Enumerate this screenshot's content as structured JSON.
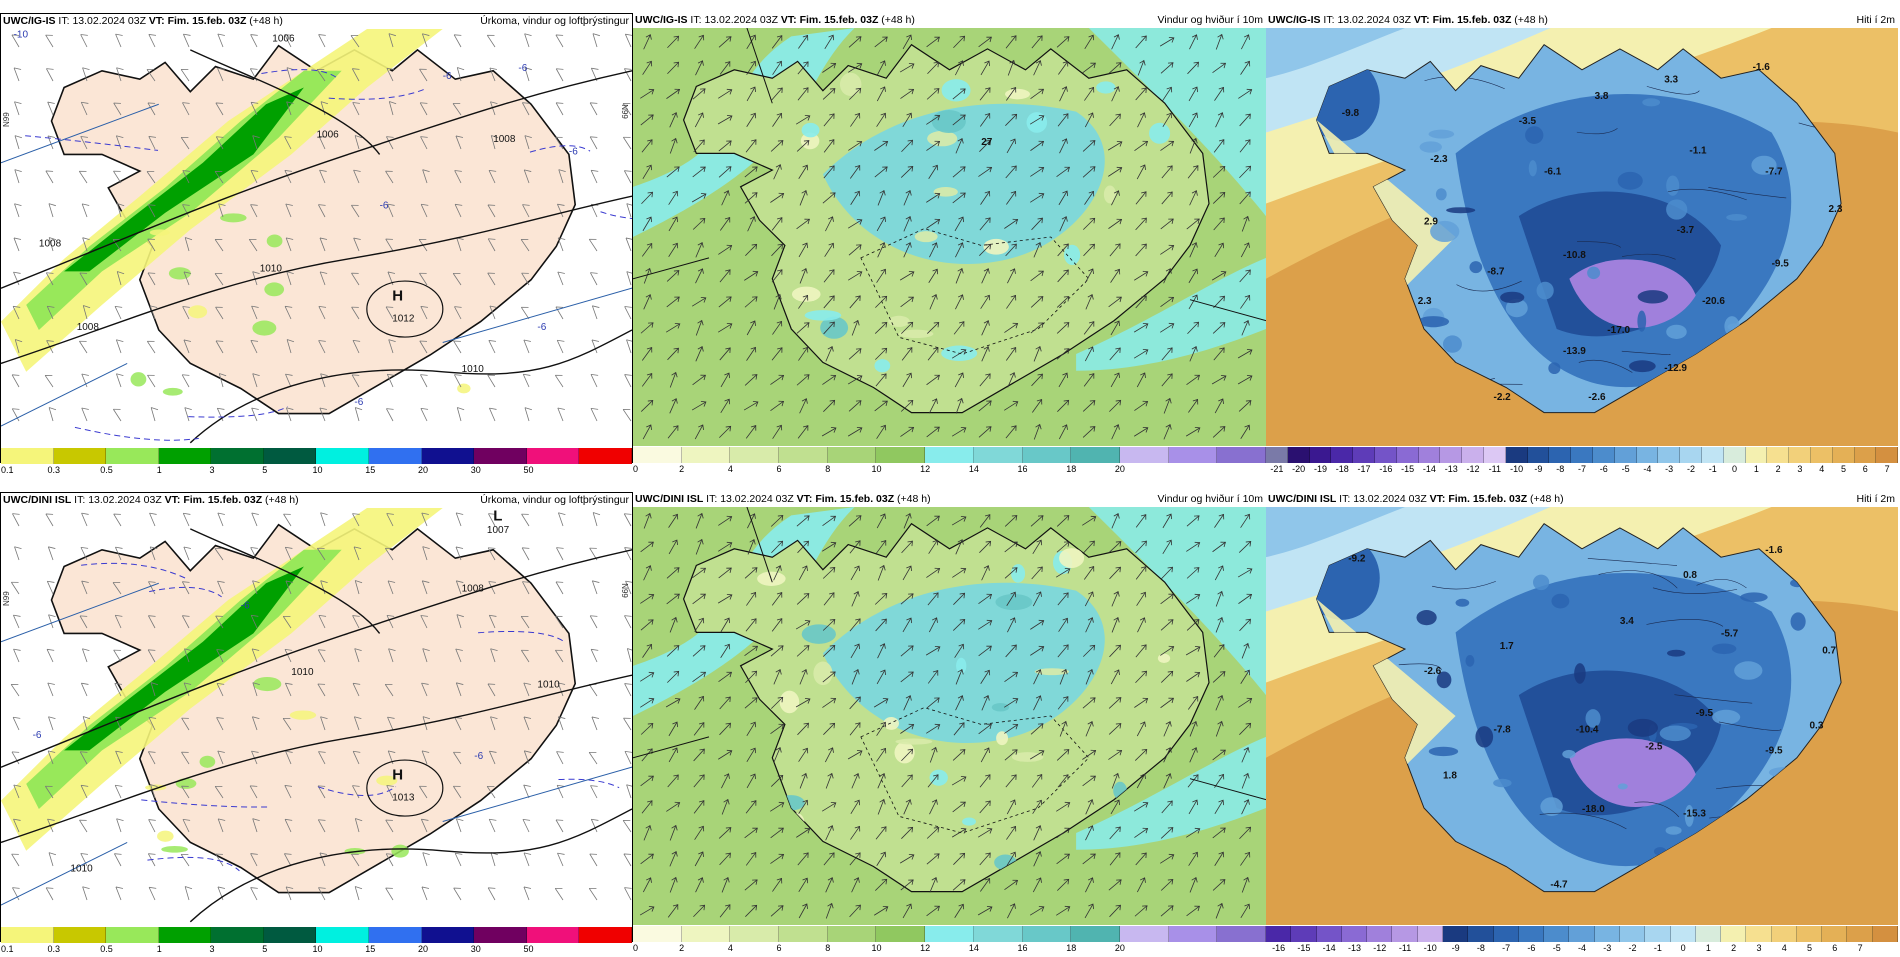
{
  "rows": [
    {
      "panels": [
        {
          "model": "UWC/IG-IS",
          "it_label": "IT:",
          "it_value": "13.02.2024 03Z",
          "vt_label": "VT:",
          "vt_value": "Fim. 15.feb. 03Z",
          "lead": "(+48 h)",
          "field_title": "Úrkoma, vindur og loftþrýstingur",
          "kind": "precip",
          "lat_label": "N99",
          "lat_label_right": "N99",
          "labels": [
            {
              "t": "-10"
            },
            {
              "t": "1006"
            },
            {
              "t": "1006"
            },
            {
              "t": "1008"
            },
            {
              "t": "1008"
            },
            {
              "t": "1010"
            },
            {
              "t": "1008"
            },
            {
              "t": "1010"
            },
            {
              "t": "H"
            },
            {
              "t": "1012"
            },
            {
              "t": "-6"
            },
            {
              "t": "-6"
            },
            {
              "t": "-6"
            },
            {
              "t": "-6"
            },
            {
              "t": "-6"
            },
            {
              "t": "-6"
            }
          ],
          "colorbar": {
            "colors": [
              "#f5f57a",
              "#c8c800",
              "#98e85a",
              "#00a000",
              "#007030",
              "#005a40",
              "#00f0e0",
              "#3070f0",
              "#101090",
              "#700060",
              "#f0107a",
              "#f00000"
            ],
            "ticks": [
              "0.1",
              "0.3",
              "0.5",
              "1",
              "3",
              "5",
              "10",
              "15",
              "20",
              "30",
              "50"
            ]
          }
        },
        {
          "model": "UWC/IG-IS",
          "it_label": "IT:",
          "it_value": "13.02.2024 03Z",
          "vt_label": "VT:",
          "vt_value": "Fim. 15.feb. 03Z",
          "lead": "(+48 h)",
          "field_title": "Vindur og hviður í 10m",
          "kind": "wind",
          "labels": [
            {
              "t": "27"
            }
          ],
          "colorbar": {
            "colors": [
              "#fafae0",
              "#eef5c0",
              "#d8ebaa",
              "#c0e090",
              "#a8d478",
              "#90c860",
              "#88ecec",
              "#80d8d8",
              "#68c8c8",
              "#50b4b0",
              "#c8b8f0",
              "#a890e8",
              "#8870d0"
            ],
            "ticks": [
              "0",
              "2",
              "4",
              "6",
              "8",
              "10",
              "12",
              "14",
              "16",
              "18",
              "20"
            ]
          }
        },
        {
          "model": "UWC/IG-IS",
          "it_label": "IT:",
          "it_value": "13.02.2024 03Z",
          "vt_label": "VT:",
          "vt_value": "Fim. 15.feb. 03Z",
          "lead": "(+48 h)",
          "field_title": "Hiti í 2m",
          "kind": "temp",
          "labels": [
            {
              "t": "-9.8"
            },
            {
              "t": "-3.5"
            },
            {
              "t": "3.3"
            },
            {
              "t": "-1.6"
            },
            {
              "t": "3.8"
            },
            {
              "t": "-2.3"
            },
            {
              "t": "-6.1"
            },
            {
              "t": "-1.1"
            },
            {
              "t": "-7.7"
            },
            {
              "t": "2.9"
            },
            {
              "t": "-3.7"
            },
            {
              "t": "2.3"
            },
            {
              "t": "-10.8"
            },
            {
              "t": "-9.5"
            },
            {
              "t": "-8.7"
            },
            {
              "t": "2.3"
            },
            {
              "t": "-20.6"
            },
            {
              "t": "-17.0"
            },
            {
              "t": "-13.9"
            },
            {
              "t": "-12.9"
            },
            {
              "t": "-2.2"
            },
            {
              "t": "-2.6"
            }
          ],
          "colorbar": {
            "colors": [
              "#7a7aa8",
              "#2a1070",
              "#3a1890",
              "#4a28a8",
              "#5e3cb8",
              "#7454c8",
              "#8a6ad4",
              "#a080dc",
              "#b698e4",
              "#cab0ec",
              "#dcc8f4",
              "#1a3a80",
              "#22509a",
              "#2c64b0",
              "#3a78c0",
              "#4c8ccc",
              "#62a0d8",
              "#78b4e2",
              "#90c6ea",
              "#a8d6f0",
              "#c0e4f4",
              "#d8ecdc",
              "#f4f0b0",
              "#f6e090",
              "#f2d07a",
              "#ecc066",
              "#e4b056",
              "#dca04a",
              "#d49040"
            ],
            "ticks": [
              "-21",
              "-20",
              "-19",
              "-18",
              "-17",
              "-16",
              "-15",
              "-14",
              "-13",
              "-12",
              "-11",
              "-10",
              "-9",
              "-8",
              "-7",
              "-6",
              "-5",
              "-4",
              "-3",
              "-2",
              "-1",
              "0",
              "1",
              "2",
              "3",
              "4",
              "5",
              "6",
              "7"
            ]
          }
        }
      ]
    },
    {
      "panels": [
        {
          "model": "UWC/DINI ISL",
          "it_label": "IT:",
          "it_value": "13.02.2024 03Z",
          "vt_label": "VT:",
          "vt_value": "Fim. 15.feb. 03Z",
          "lead": "(+48 h)",
          "field_title": "Úrkoma, vindur og loftþrýstingur",
          "kind": "precip",
          "lat_label": "N99",
          "lat_label_right": "N99",
          "labels": [
            {
              "t": "L"
            },
            {
              "t": "1007"
            },
            {
              "t": "1008"
            },
            {
              "t": "1010"
            },
            {
              "t": "1010"
            },
            {
              "t": "H"
            },
            {
              "t": "1013"
            },
            {
              "t": "1010"
            },
            {
              "t": "-6"
            },
            {
              "t": "-6"
            },
            {
              "t": "-6"
            }
          ],
          "colorbar": {
            "colors": [
              "#f5f57a",
              "#c8c800",
              "#98e85a",
              "#00a000",
              "#007030",
              "#005a40",
              "#00f0e0",
              "#3070f0",
              "#101090",
              "#700060",
              "#f0107a",
              "#f00000"
            ],
            "ticks": [
              "0.1",
              "0.3",
              "0.5",
              "1",
              "3",
              "5",
              "10",
              "15",
              "20",
              "30",
              "50"
            ]
          }
        },
        {
          "model": "UWC/DINI ISL",
          "it_label": "IT:",
          "it_value": "13.02.2024 03Z",
          "vt_label": "VT:",
          "vt_value": "Fim. 15.feb. 03Z",
          "lead": "(+48 h)",
          "field_title": "Vindur og hviður í 10m",
          "kind": "wind",
          "labels": [],
          "colorbar": {
            "colors": [
              "#fafae0",
              "#eef5c0",
              "#d8ebaa",
              "#c0e090",
              "#a8d478",
              "#90c860",
              "#88ecec",
              "#80d8d8",
              "#68c8c8",
              "#50b4b0",
              "#c8b8f0",
              "#a890e8",
              "#8870d0"
            ],
            "ticks": [
              "0",
              "2",
              "4",
              "6",
              "8",
              "10",
              "12",
              "14",
              "16",
              "18",
              "20"
            ]
          }
        },
        {
          "model": "UWC/DINI ISL",
          "it_label": "IT:",
          "it_value": "13.02.2024 03Z",
          "vt_label": "VT:",
          "vt_value": "Fim. 15.feb. 03Z",
          "lead": "(+48 h)",
          "field_title": "Hiti í 2m",
          "kind": "temp",
          "labels": [
            {
              "t": "-9.2"
            },
            {
              "t": "-1.6"
            },
            {
              "t": "0.8"
            },
            {
              "t": "3.4"
            },
            {
              "t": "-5.7"
            },
            {
              "t": "0.7"
            },
            {
              "t": "-2.6"
            },
            {
              "t": "1.7"
            },
            {
              "t": "-9.5"
            },
            {
              "t": "-10.4"
            },
            {
              "t": "-7.8"
            },
            {
              "t": "-2.5"
            },
            {
              "t": "-9.5"
            },
            {
              "t": "0.3"
            },
            {
              "t": "1.8"
            },
            {
              "t": "-18.0"
            },
            {
              "t": "-15.3"
            },
            {
              "t": "-4.7"
            }
          ],
          "colorbar": {
            "colors": [
              "#4a28a8",
              "#5e3cb8",
              "#7454c8",
              "#8a6ad4",
              "#a080dc",
              "#b698e4",
              "#cab0ec",
              "#1a3a80",
              "#22509a",
              "#2c64b0",
              "#3a78c0",
              "#4c8ccc",
              "#62a0d8",
              "#78b4e2",
              "#90c6ea",
              "#a8d6f0",
              "#c0e4f4",
              "#d8ecdc",
              "#f4f0b0",
              "#f6e090",
              "#f2d07a",
              "#ecc066",
              "#e4b056",
              "#dca04a",
              "#d49040"
            ],
            "ticks": [
              "-16",
              "-15",
              "-14",
              "-13",
              "-12",
              "-11",
              "-10",
              "-9",
              "-8",
              "-7",
              "-6",
              "-5",
              "-4",
              "-3",
              "-2",
              "-1",
              "0",
              "1",
              "2",
              "3",
              "4",
              "5",
              "6",
              "7"
            ]
          }
        }
      ]
    }
  ]
}
